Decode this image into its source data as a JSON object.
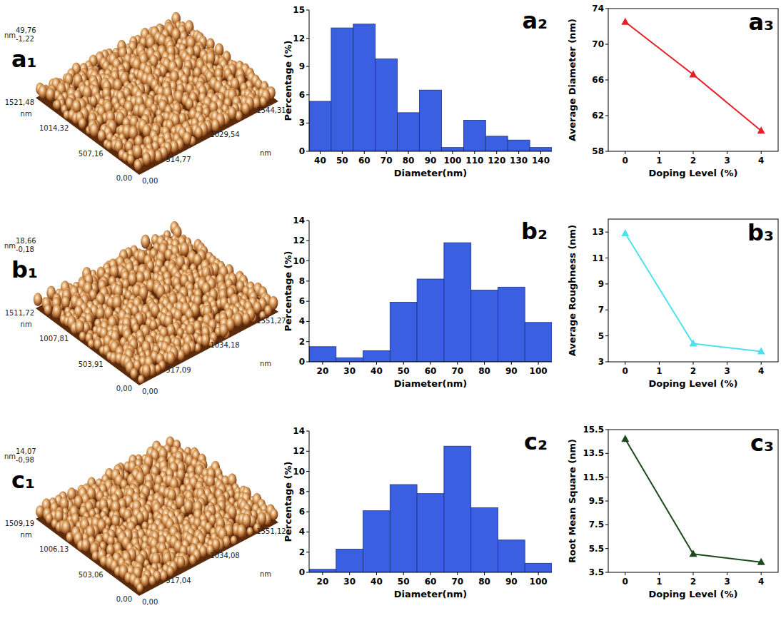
{
  "chart_data": [
    {
      "type": "afm",
      "title": "a₁",
      "z_unit": "nm",
      "z_labels": [
        "49,76",
        "-1,22"
      ],
      "y_unit": "nm",
      "y_labels": [
        "0,00",
        "507,16",
        "1014,32",
        "1521,48"
      ],
      "x_unit": "nm",
      "x_labels": [
        "0,00",
        "514,77",
        "1029,54",
        "1544,31"
      ]
    },
    {
      "type": "histogram",
      "title": "a₂",
      "xlabel": "Diameter(nm)",
      "ylabel": "Percentage (%)",
      "bins": [
        35,
        45,
        55,
        65,
        75,
        85,
        95,
        105,
        115,
        125,
        135,
        145
      ],
      "values": [
        5.3,
        13.1,
        13.5,
        9.8,
        4.1,
        6.5,
        0.4,
        3.3,
        1.6,
        1.2,
        0.4
      ],
      "color": "#3a5fe0",
      "xlim": [
        35,
        145
      ],
      "ylim": [
        0,
        15
      ],
      "xticks": [
        40,
        50,
        60,
        70,
        80,
        90,
        100,
        110,
        120,
        130,
        140
      ],
      "yticks": [
        0,
        3,
        6,
        9,
        12,
        15
      ]
    },
    {
      "type": "line",
      "title": "a₃",
      "xlabel": "Doping Level (%)",
      "ylabel": "Average Diameter (nm)",
      "x": [
        0,
        2,
        4
      ],
      "values": [
        72.5,
        66.6,
        60.3
      ],
      "color": "#e32027",
      "marker": "triangle",
      "xlim": [
        -0.5,
        4.5
      ],
      "ylim": [
        58,
        74
      ],
      "xticks": [
        0,
        1,
        2,
        3,
        4
      ],
      "yticks": [
        58,
        62,
        66,
        70,
        74
      ]
    },
    {
      "type": "afm",
      "title": "b₁",
      "z_unit": "nm",
      "z_labels": [
        "18,66",
        "-0,18"
      ],
      "y_unit": "nm",
      "y_labels": [
        "0,00",
        "503,91",
        "1007,81",
        "1511,72"
      ],
      "x_unit": "nm",
      "x_labels": [
        "0,00",
        "517,09",
        "1034,18",
        "1551,27"
      ]
    },
    {
      "type": "histogram",
      "title": "b₂",
      "xlabel": "Diameter(nm)",
      "ylabel": "Percentage (%)",
      "bins": [
        15,
        25,
        35,
        45,
        55,
        65,
        75,
        85,
        95,
        105
      ],
      "values": [
        1.5,
        0.4,
        1.1,
        5.9,
        8.2,
        11.8,
        7.1,
        7.4,
        3.9
      ],
      "color": "#3a5fe0",
      "xlim": [
        15,
        105
      ],
      "ylim": [
        0,
        14
      ],
      "xticks": [
        20,
        30,
        40,
        50,
        60,
        70,
        80,
        90,
        100
      ],
      "yticks": [
        0,
        2,
        4,
        6,
        8,
        10,
        12,
        14
      ]
    },
    {
      "type": "line",
      "title": "b₃",
      "xlabel": "Doping Level (%)",
      "ylabel": "Average Roughness (nm)",
      "x": [
        0,
        2,
        4
      ],
      "values": [
        12.9,
        4.4,
        3.8
      ],
      "color": "#4fe0ee",
      "marker": "triangle",
      "xlim": [
        -0.5,
        4.5
      ],
      "ylim": [
        3,
        14
      ],
      "xticks": [
        0,
        1,
        2,
        3,
        4
      ],
      "yticks": [
        3,
        5,
        7,
        9,
        11,
        13
      ]
    },
    {
      "type": "afm",
      "title": "c₁",
      "z_unit": "nm",
      "z_labels": [
        "14,07",
        "-0,98"
      ],
      "y_unit": "nm",
      "y_labels": [
        "0,00",
        "503,06",
        "1006,13",
        "1509,19"
      ],
      "x_unit": "nm",
      "x_labels": [
        "0,00",
        "517,04",
        "1034,08",
        "1551,12"
      ]
    },
    {
      "type": "histogram",
      "title": "c₂",
      "xlabel": "Diameter(nm)",
      "ylabel": "Percentage (%)",
      "bins": [
        15,
        25,
        35,
        45,
        55,
        65,
        75,
        85,
        95,
        105
      ],
      "values": [
        0.3,
        2.3,
        6.1,
        8.7,
        7.8,
        12.5,
        6.4,
        3.2,
        0.9
      ],
      "color": "#3a5fe0",
      "xlim": [
        15,
        105
      ],
      "ylim": [
        0,
        14
      ],
      "xticks": [
        20,
        30,
        40,
        50,
        60,
        70,
        80,
        90,
        100
      ],
      "yticks": [
        0,
        2,
        4,
        6,
        8,
        10,
        12,
        14
      ]
    },
    {
      "type": "line",
      "title": "c₃",
      "xlabel": "Doping Level (%)",
      "ylabel": "Root Mean Square (nm)",
      "x": [
        0,
        2,
        4
      ],
      "values": [
        14.7,
        5.05,
        4.35
      ],
      "color": "#1d4a1d",
      "marker": "triangle",
      "xlim": [
        -0.5,
        4.5
      ],
      "ylim": [
        3.5,
        15.5
      ],
      "xticks": [
        0,
        1,
        2,
        3,
        4
      ],
      "yticks": [
        3.5,
        5.5,
        7.5,
        9.5,
        11.5,
        13.5,
        15.5
      ]
    }
  ]
}
